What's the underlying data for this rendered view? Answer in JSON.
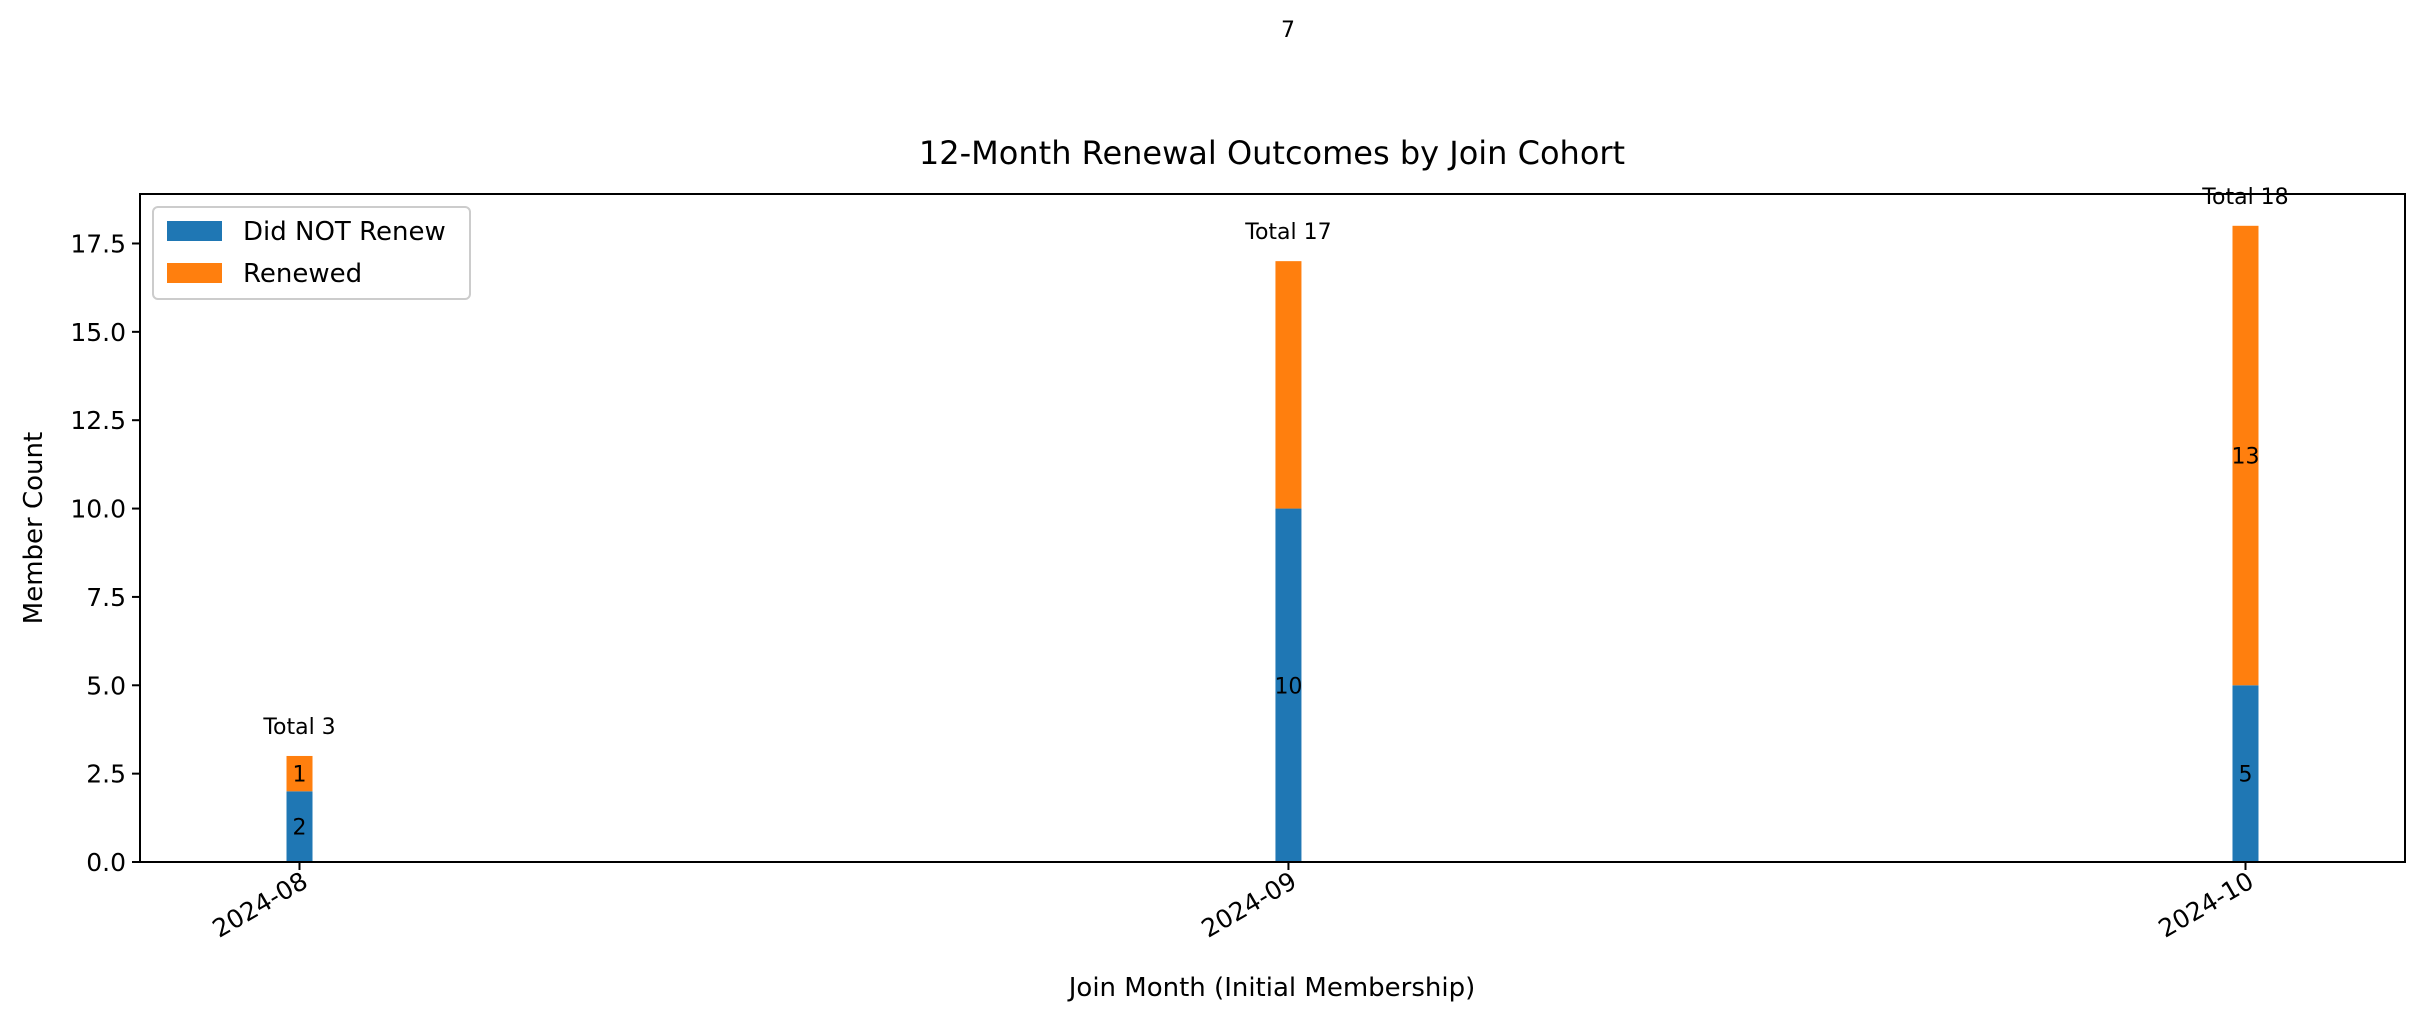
{
  "page_number": "7",
  "chart_data": {
    "type": "bar",
    "stacked": true,
    "title": "12-Month Renewal Outcomes by Join Cohort",
    "xlabel": "Join Month (Initial Membership)",
    "ylabel": "Member Count",
    "x_axis_type": "date",
    "categories": [
      "2024-08",
      "2024-09",
      "2024-10"
    ],
    "x_dates": [
      "2024-08-01",
      "2024-09-01",
      "2024-10-01"
    ],
    "x_range": [
      "2024-07-27",
      "2024-10-06"
    ],
    "ylim": [
      0,
      18.9
    ],
    "yticks": [
      0.0,
      2.5,
      5.0,
      7.5,
      10.0,
      12.5,
      15.0,
      17.5
    ],
    "ytick_labels": [
      "0.0",
      "2.5",
      "5.0",
      "7.5",
      "10.0",
      "12.5",
      "15.0",
      "17.5"
    ],
    "series": [
      {
        "name": "Did NOT Renew",
        "values": [
          2,
          10,
          5
        ],
        "labels": [
          "2",
          "10",
          "5"
        ],
        "color": "#1f77b4"
      },
      {
        "name": "Renewed",
        "values": [
          1,
          7,
          13
        ],
        "labels": [
          "1",
          "",
          "13"
        ],
        "color": "#ff7f0e"
      }
    ],
    "totals": [
      3,
      17,
      18
    ],
    "total_labels": [
      "Total 3",
      "Total 17",
      "Total 18"
    ],
    "legend_position": "top-left",
    "grid": false
  }
}
